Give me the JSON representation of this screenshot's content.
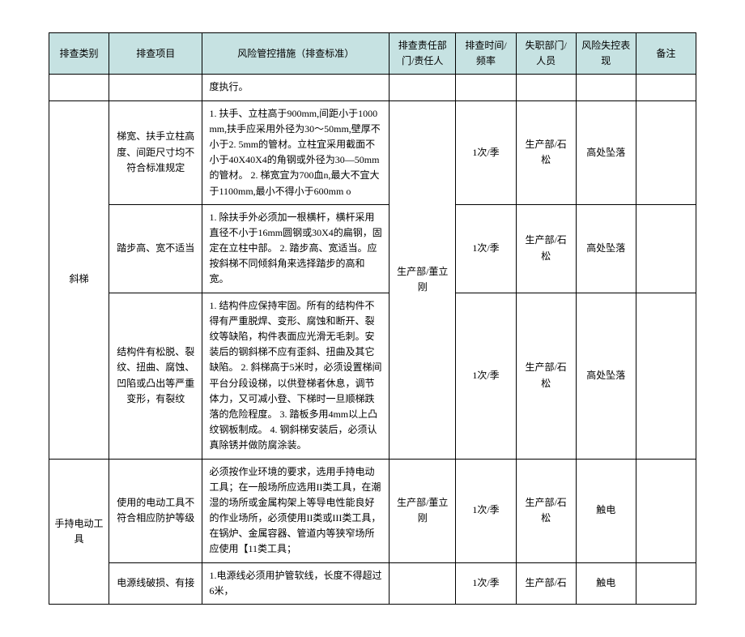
{
  "headers": {
    "category": "排查类别",
    "item": "排查项目",
    "measure": "风险管控措施（排查标准）",
    "dept": "排查责任部门/责任人",
    "time": "排查时间/频率",
    "acc": "失职部门/人员",
    "risk": "风险失控表现",
    "note": "备注"
  },
  "row_prev": {
    "measure": "度执行。"
  },
  "group1": {
    "category": "斜梯",
    "dept": "生产部/董立刚",
    "rows": [
      {
        "item": "梯宽、扶手立柱高度、间距尺寸均不符合标准规定",
        "measure": "1. 扶手、立柱高于900mm,间距小于1000mm,扶手应采用外径为30～50mm,壁厚不小于2.       5mm的管材。立柱宜采用截面不小于40X40X4的角钢或外径为30—50mm的管材。\n2. 梯宽宜为700血n,最大不宜大于1100mm,最小不得小于600mm o",
        "time": "1次/季",
        "acc": "生产部/石松",
        "risk": "高处坠落",
        "note": ""
      },
      {
        "item": "踏步高、宽不适当",
        "measure": "1. 除扶手外必须加一根横杆，横杆采用直径不小于16mm圆钢或30X4的扁钢，固定在立柱中部。\n2. 踏步高、宽适当。应按斜梯不同倾斜角来选择踏步的高和宽。",
        "time": "1次/季",
        "acc": "生产部/石松",
        "risk": "高处坠落",
        "note": ""
      },
      {
        "item": "结构件有松脱、裂纹、扭曲、腐蚀、凹陷或凸出等严重变形，有裂纹",
        "measure": "1. 结构件应保持牢固。所有的结构件不得有严重脱焊、变形、腐蚀和断开、裂纹等缺陷，构件表面应光滑无毛刺。安装后的钢斜梯不应有歪斜、扭曲及其它缺陷。\n2. 斜梯高于5米时，必须设置梯间平台分段设梯，以供登梯者休息，调节体力，又可减小登、下梯时一旦顺梯跌落的危险程度。\n3. 踏板多用4mm以上凸纹钢板制成。\n4. 钢斜梯安装后，必须认真除锈并做防腐涂装。",
        "time": "1次/季",
        "acc": "生产部/石松",
        "risk": "高处坠落",
        "note": ""
      }
    ]
  },
  "group2": {
    "category": "手持电动工具",
    "rows": [
      {
        "item": "使用的电动工具不符合相应防护等级",
        "measure": "必须按作业环境的要求，选用手持电动工具；在一般场所应选用II类工具，在潮湿的场所或金属构架上等导电性能良好的作业场所，必须使用II类或III类工具，在锅炉、金属容器、管道内等狭窄场所应使用【11类工具；",
        "dept": "生产部/董立刚",
        "time": "1次/季",
        "acc": "生产部/石松",
        "risk": "触电",
        "note": ""
      },
      {
        "item": "电源线破损、有接",
        "measure": "1.电源线必须用护管软线，长度不得超过6米，",
        "dept": "",
        "time": "1次/季",
        "acc": "生产部/石",
        "risk": "触电",
        "note": ""
      }
    ]
  }
}
